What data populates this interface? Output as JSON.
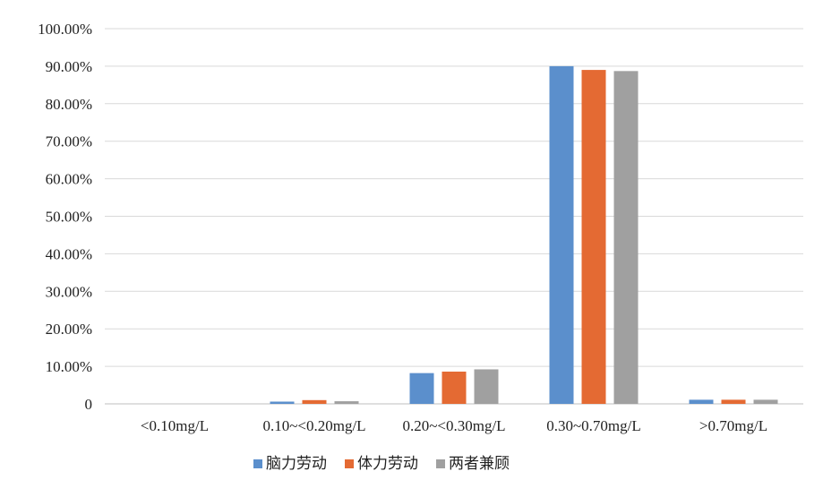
{
  "chart_data": {
    "type": "bar",
    "title": "",
    "xlabel": "",
    "ylabel": "",
    "categories": [
      "<0.10mg/L",
      "0.10~<0.20mg/L",
      "0.20~<0.30mg/L",
      "0.30~0.70mg/L",
      ">0.70mg/L"
    ],
    "series": [
      {
        "name": "脑力劳动",
        "color": "#5B8FCC",
        "values": [
          0,
          0.6,
          8.2,
          90.0,
          1.1
        ]
      },
      {
        "name": "体力劳动",
        "color": "#E46A33",
        "values": [
          0,
          1.0,
          8.6,
          89.0,
          1.1
        ]
      },
      {
        "name": "两者兼顾",
        "color": "#A0A0A0",
        "values": [
          0,
          0.7,
          9.2,
          88.7,
          1.1
        ]
      }
    ],
    "ylim": [
      0,
      100
    ],
    "yticks": [
      "0",
      "10.00%",
      "20.00%",
      "30.00%",
      "40.00%",
      "50.00%",
      "60.00%",
      "70.00%",
      "80.00%",
      "90.00%",
      "100.00%"
    ],
    "grid": true,
    "legend_position": "bottom"
  }
}
